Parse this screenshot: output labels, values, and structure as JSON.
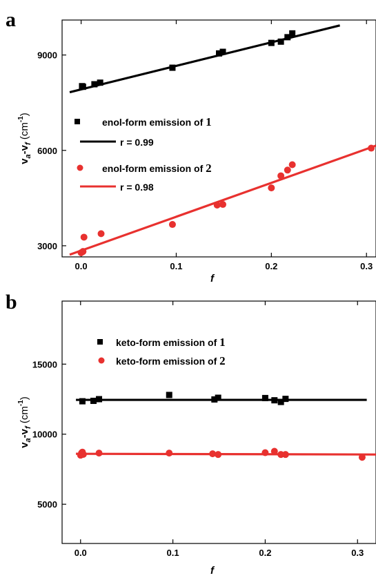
{
  "chart_data": [
    {
      "panel": "a",
      "type": "scatter",
      "xlabel": "f",
      "ylabel": {
        "base": "v",
        "sub1": "a",
        "mid": "-v",
        "sub2": "f",
        "unit_open": " (cm",
        "unit_sup": "-1",
        "unit_close": ")"
      },
      "xlim": [
        -0.02,
        0.31
      ],
      "ylim": [
        2650,
        10100
      ],
      "xticks": [
        0.0,
        0.1,
        0.2,
        0.3
      ],
      "xtick_labels": [
        "0.0",
        "0.1",
        "0.2",
        "0.3"
      ],
      "yticks": [
        3000,
        6000,
        9000
      ],
      "ytick_labels": [
        "3000",
        "6000",
        "9000"
      ],
      "series": [
        {
          "color": "#000000",
          "marker": "square",
          "legend_label": "enol-form emission of ",
          "legend_num": "1",
          "fit_label": "r = 0.99",
          "x": [
            0.001,
            0.002,
            0.014,
            0.02,
            0.096,
            0.145,
            0.149,
            0.2,
            0.21,
            0.217,
            0.222
          ],
          "y": [
            8020,
            8000,
            8080,
            8130,
            8600,
            9050,
            9100,
            9380,
            9420,
            9560,
            9680
          ],
          "fit": {
            "x": [
              -0.012,
              0.272
            ],
            "y": [
              7830,
              9930
            ]
          }
        },
        {
          "color": "#e8312f",
          "marker": "circle",
          "legend_label": "enol-form emission of ",
          "legend_num": "2",
          "fit_label": "r = 0.98",
          "x": [
            0.0,
            0.002,
            0.003,
            0.021,
            0.096,
            0.143,
            0.149,
            0.2,
            0.21,
            0.217,
            0.222,
            0.305
          ],
          "y": [
            2780,
            2820,
            3270,
            3380,
            3670,
            4280,
            4300,
            4820,
            5200,
            5380,
            5550,
            6070
          ],
          "fit": {
            "x": [
              -0.012,
              0.31
            ],
            "y": [
              2720,
              6150
            ]
          }
        }
      ]
    },
    {
      "panel": "b",
      "type": "scatter",
      "xlabel": "f",
      "ylabel": {
        "base": "v",
        "sub1": "a",
        "mid": "-v",
        "sub2": "f",
        "unit_open": " (cm",
        "unit_sup": "-1",
        "unit_close": ")"
      },
      "xlim": [
        -0.02,
        0.32
      ],
      "ylim": [
        2200,
        19500
      ],
      "xticks": [
        0.0,
        0.1,
        0.2,
        0.3
      ],
      "xtick_labels": [
        "0.0",
        "0.1",
        "0.2",
        "0.3"
      ],
      "yticks": [
        5000,
        10000,
        15000
      ],
      "ytick_labels": [
        "5000",
        "10000",
        "15000"
      ],
      "series": [
        {
          "color": "#000000",
          "marker": "square",
          "legend_label": "keto-form emission of ",
          "legend_num": "1",
          "x": [
            0.002,
            0.014,
            0.02,
            0.096,
            0.145,
            0.149,
            0.2,
            0.21,
            0.217,
            0.222
          ],
          "y": [
            12350,
            12380,
            12500,
            12800,
            12480,
            12600,
            12580,
            12420,
            12300,
            12520
          ],
          "fit": {
            "x": [
              -0.005,
              0.31
            ],
            "y": [
              12450,
              12450
            ]
          }
        },
        {
          "color": "#e8312f",
          "marker": "circle",
          "legend_label": "keto-form emission of ",
          "legend_num": "2",
          "x": [
            0.0,
            0.001,
            0.002,
            0.003,
            0.02,
            0.096,
            0.143,
            0.149,
            0.2,
            0.21,
            0.217,
            0.222,
            0.305
          ],
          "y": [
            8500,
            8650,
            8720,
            8560,
            8650,
            8650,
            8600,
            8550,
            8680,
            8780,
            8550,
            8550,
            8350
          ],
          "fit": {
            "x": [
              -0.005,
              0.32
            ],
            "y": [
              8600,
              8550
            ]
          }
        }
      ]
    }
  ]
}
